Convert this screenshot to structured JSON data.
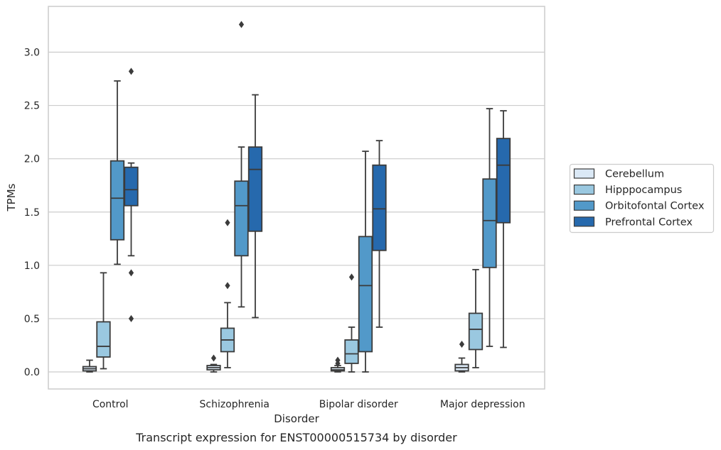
{
  "chart_data": {
    "type": "box",
    "title": "",
    "caption": "Transcript expression for ENST00000515734 by disorder",
    "xlabel": "Disorder",
    "ylabel": "TPMs",
    "ylim": [
      -0.16,
      3.43
    ],
    "yticks": [
      "0.0",
      "0.5",
      "1.0",
      "1.5",
      "2.0",
      "2.5",
      "3.0"
    ],
    "grid": "horizontal",
    "legend_position": "right",
    "categories": [
      "Control",
      "Schizophrenia",
      "Bipolar disorder",
      "Major depression"
    ],
    "series": [
      {
        "name": "Cerebellum",
        "color": "#dbe9f6",
        "boxes": [
          {
            "low": 0.0,
            "q1": 0.01,
            "median": 0.03,
            "q3": 0.05,
            "high": 0.11,
            "outliers": []
          },
          {
            "low": 0.0,
            "q1": 0.02,
            "median": 0.04,
            "q3": 0.06,
            "high": 0.07,
            "outliers": [
              0.13
            ]
          },
          {
            "low": 0.0,
            "q1": 0.01,
            "median": 0.02,
            "q3": 0.04,
            "high": 0.06,
            "outliers": [
              0.11,
              0.08
            ]
          },
          {
            "low": 0.0,
            "q1": 0.01,
            "median": 0.04,
            "q3": 0.07,
            "high": 0.13,
            "outliers": [
              0.26
            ]
          }
        ]
      },
      {
        "name": "Hipppocampus",
        "color": "#9ac8e0",
        "boxes": [
          {
            "low": 0.03,
            "q1": 0.14,
            "median": 0.24,
            "q3": 0.47,
            "high": 0.93,
            "outliers": []
          },
          {
            "low": 0.04,
            "q1": 0.19,
            "median": 0.3,
            "q3": 0.41,
            "high": 0.65,
            "outliers": [
              0.81,
              1.4
            ]
          },
          {
            "low": 0.0,
            "q1": 0.08,
            "median": 0.17,
            "q3": 0.3,
            "high": 0.42,
            "outliers": [
              0.89
            ]
          },
          {
            "low": 0.04,
            "q1": 0.21,
            "median": 0.4,
            "q3": 0.55,
            "high": 0.96,
            "outliers": []
          }
        ]
      },
      {
        "name": "Orbitofontal Cortex",
        "color": "#5299c9",
        "boxes": [
          {
            "low": 1.01,
            "q1": 1.24,
            "median": 1.63,
            "q3": 1.98,
            "high": 2.73,
            "outliers": []
          },
          {
            "low": 0.61,
            "q1": 1.09,
            "median": 1.56,
            "q3": 1.79,
            "high": 2.11,
            "outliers": [
              3.26
            ]
          },
          {
            "low": 0.0,
            "q1": 0.19,
            "median": 0.81,
            "q3": 1.27,
            "high": 2.07,
            "outliers": []
          },
          {
            "low": 0.24,
            "q1": 0.98,
            "median": 1.42,
            "q3": 1.81,
            "high": 2.47,
            "outliers": []
          }
        ]
      },
      {
        "name": "Prefrontal Cortex",
        "color": "#2669ad",
        "boxes": [
          {
            "low": 1.09,
            "q1": 1.56,
            "median": 1.71,
            "q3": 1.92,
            "high": 1.96,
            "outliers": [
              2.82,
              0.93,
              0.5
            ]
          },
          {
            "low": 0.51,
            "q1": 1.32,
            "median": 1.9,
            "q3": 2.11,
            "high": 2.6,
            "outliers": []
          },
          {
            "low": 0.42,
            "q1": 1.14,
            "median": 1.53,
            "q3": 1.94,
            "high": 2.17,
            "outliers": []
          },
          {
            "low": 0.23,
            "q1": 1.4,
            "median": 1.94,
            "q3": 2.19,
            "high": 2.45,
            "outliers": []
          }
        ]
      }
    ]
  }
}
